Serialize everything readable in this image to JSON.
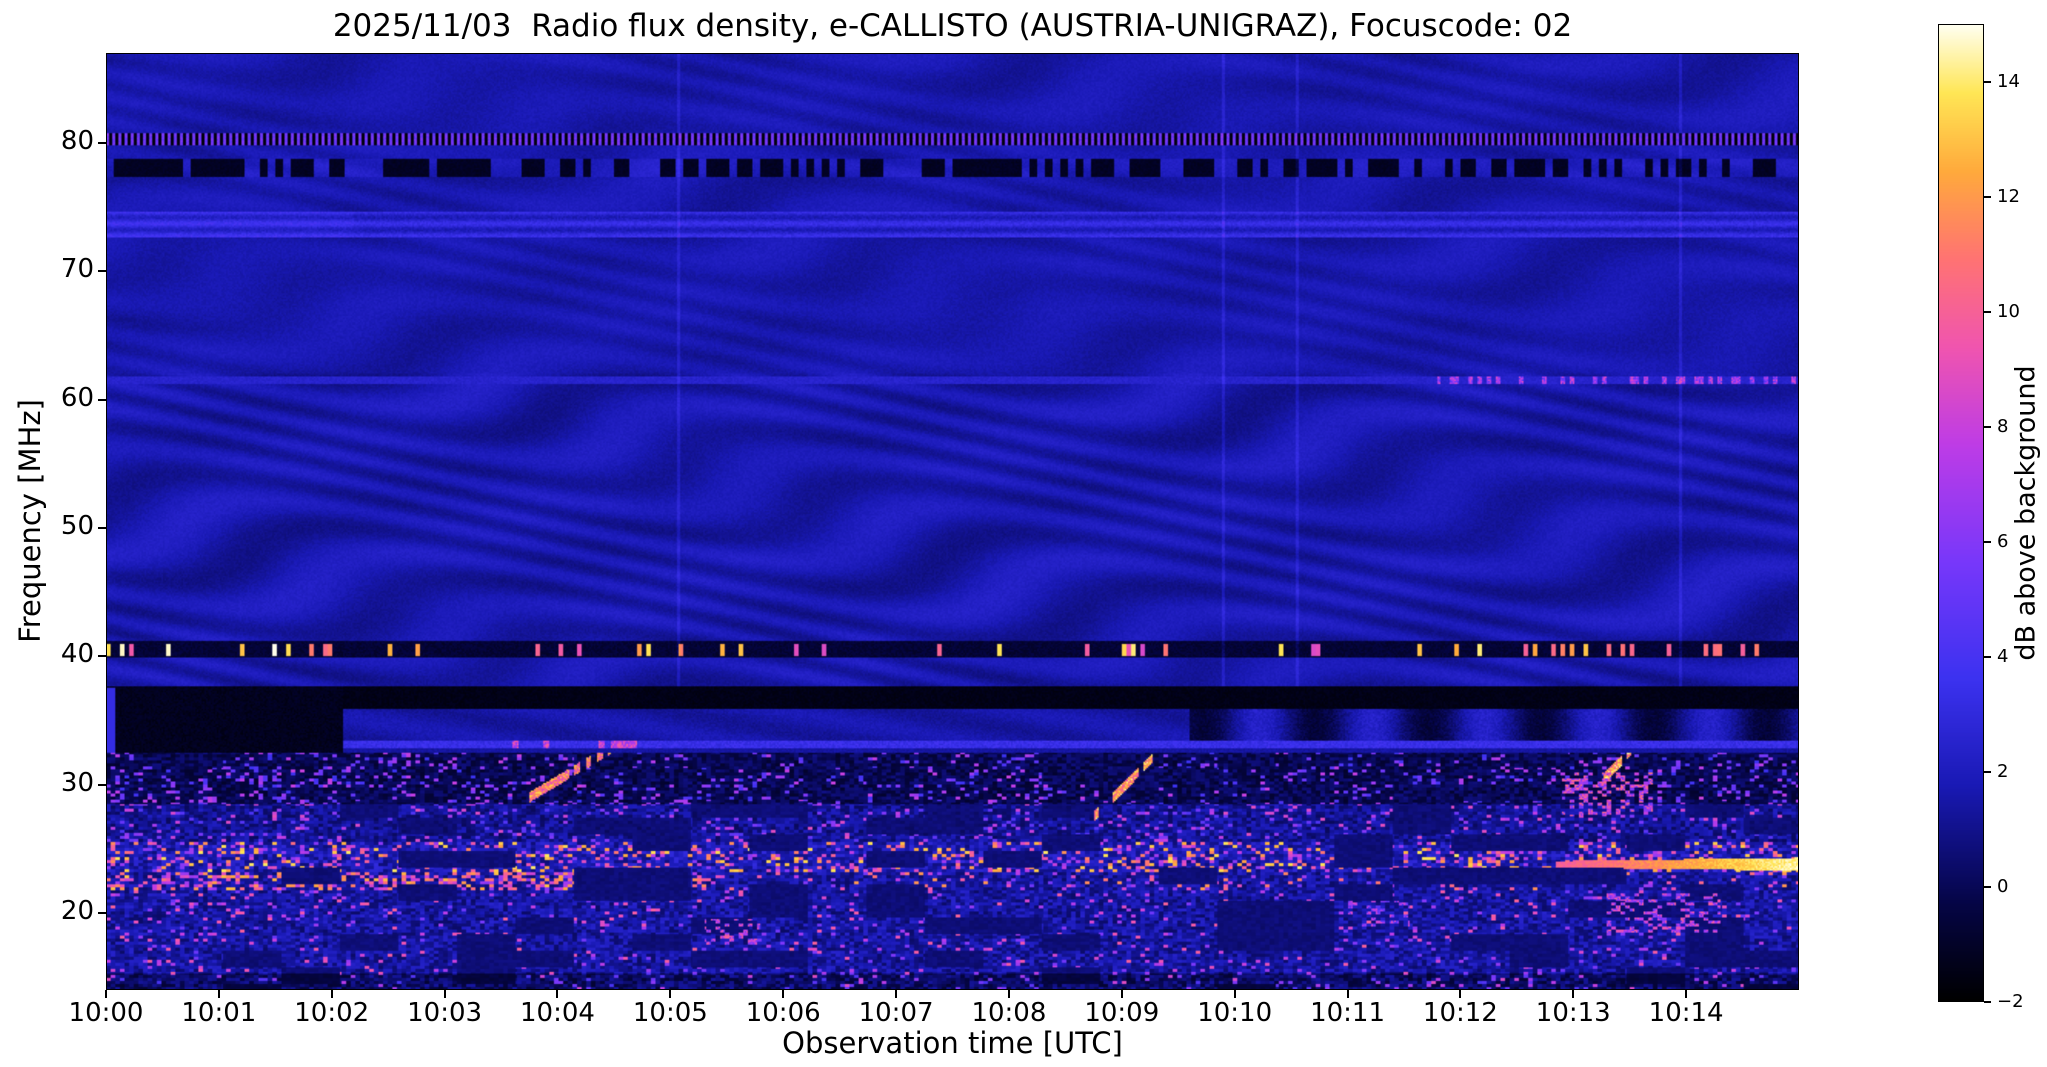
{
  "chart_data": {
    "type": "heatmap",
    "title": "2025/11/03  Radio flux density, e-CALLISTO (AUSTRIA-UNIGRAZ), Focuscode: 02",
    "xlabel": "Observation time [UTC]",
    "ylabel": "Frequency [MHz]",
    "x_ticks": [
      "10:00",
      "10:01",
      "10:02",
      "10:03",
      "10:04",
      "10:05",
      "10:06",
      "10:07",
      "10:08",
      "10:09",
      "10:10",
      "10:11",
      "10:12",
      "10:13",
      "10:14"
    ],
    "x_range_minutes": [
      0,
      15
    ],
    "y_ticks": [
      20,
      30,
      40,
      50,
      60,
      70,
      80
    ],
    "y_range_mhz": [
      14,
      87
    ],
    "grid": false,
    "colorbar": {
      "label": "dB above background",
      "tick_labels": [
        "−2",
        "0",
        "2",
        "4",
        "6",
        "8",
        "10",
        "12",
        "14"
      ],
      "tick_values": [
        -2,
        0,
        2,
        4,
        6,
        8,
        10,
        12,
        14
      ],
      "range": [
        -2,
        15
      ]
    },
    "colormap": {
      "name": "gnuplot2-like",
      "range": [
        -2,
        15
      ],
      "stops": [
        [
          0.0,
          [
            0,
            0,
            0
          ]
        ],
        [
          0.1,
          [
            5,
            5,
            70
          ]
        ],
        [
          0.22,
          [
            25,
            25,
            180
          ]
        ],
        [
          0.33,
          [
            60,
            50,
            240
          ]
        ],
        [
          0.45,
          [
            120,
            55,
            250
          ]
        ],
        [
          0.57,
          [
            190,
            60,
            230
          ]
        ],
        [
          0.67,
          [
            240,
            85,
            175
          ]
        ],
        [
          0.76,
          [
            255,
            115,
            115
          ]
        ],
        [
          0.85,
          [
            255,
            170,
            60
          ]
        ],
        [
          0.93,
          [
            255,
            230,
            85
          ]
        ],
        [
          1.0,
          [
            255,
            255,
            240
          ]
        ]
      ]
    },
    "features": {
      "description": "Blue background with curved interference fringes above 37 MHz; dotted RFI line at 80.3 MHz; dark dashed band at 78 MHz; bright blue band at 73-74.5 MHz; faint line at 61.5 MHz with pink dots after 10:12; dark band with bright white dots at 40.5 MHz; black band 36-37.6 MHz; thin light-blue line at 33 MHz from 10:02; black block 32.5-37.6 MHz before 10:02; noisy speckled RFI field below 32.5 MHz with bright yellow bursts near 24 and 22.5 MHz; drifting bursts near 10:04, 10:09 and 10:13 rising 28-33 MHz; continuous bright streak at 23.8 MHz after 10:13.",
      "bands": {
        "dotted_line": {
          "f": [
            79.85,
            80.75
          ],
          "v_on": 4.6,
          "v_off": -1.6
        },
        "dashed_dark": {
          "f": [
            77.4,
            78.8
          ],
          "v_dark": -1.4
        },
        "bright_band_73": {
          "f": [
            72.6,
            74.6
          ],
          "v": 2.6
        },
        "line_61": {
          "f_center": 61.5,
          "half_w": 0.28,
          "v": 2.5,
          "dot_m_start": 11.8,
          "dot_p": 0.35,
          "dot_v": [
            4.5,
            9
          ]
        },
        "strip_33_36": {
          "f": [
            33.4,
            35.95
          ],
          "mod_m_start": 9.6
        },
        "dotted_band_40": {
          "f": [
            39.85,
            41.15
          ],
          "v_bg": -1.1,
          "dot_p": 0.16,
          "dot_v": [
            8.5,
            15
          ]
        },
        "dark_band_37": {
          "f": [
            35.95,
            37.65
          ],
          "v": -1.7
        },
        "line_33": {
          "f_center": 33.1,
          "half_w": 0.28,
          "m_start": 2.1,
          "v": 3.4
        },
        "left_dark_block": {
          "f": [
            32.5,
            37.65
          ],
          "m_end": 2.1,
          "v": -1.6
        },
        "left_edge_strip": {
          "m_end": 0.08,
          "f": [
            32.5,
            37.5
          ],
          "v": 3.2
        }
      },
      "noise_bands": [
        {
          "f": [
            28.5,
            32.5
          ],
          "base": -0.9,
          "spread": 1.6,
          "p": 0.14,
          "hi": [
            3.5,
            8
          ]
        },
        {
          "f": [
            25.5,
            28.5
          ],
          "base": 0.1,
          "spread": 2.1,
          "p": 0.12,
          "hi": [
            4,
            9
          ]
        },
        {
          "f": [
            23.2,
            25.5
          ],
          "base": 0.6,
          "spread": 2.4,
          "p": 0.26,
          "hi": [
            6,
            14
          ]
        },
        {
          "f": [
            21.8,
            23.2
          ],
          "base": 0.3,
          "spread": 2.1,
          "p": 0.1,
          "hi": [
            5,
            12
          ],
          "left_m_end": 5.4,
          "left_p": 0.42,
          "left_hi": [
            6,
            13
          ]
        },
        {
          "f": [
            14.0,
            21.8
          ],
          "base": 0.3,
          "spread": 2.2,
          "p": 0.07,
          "hi": [
            5,
            10
          ]
        }
      ],
      "bursts": [
        {
          "m": [
            3.75,
            4.55
          ],
          "f": [
            29.0,
            33.2
          ],
          "v": 11
        },
        {
          "m": [
            8.75,
            9.4
          ],
          "f": [
            27.5,
            33.2
          ],
          "v": 12
        },
        {
          "m": [
            12.95,
            13.6
          ],
          "f": [
            27.5,
            33.5
          ],
          "v": 12
        }
      ],
      "clusters": [
        {
          "m": [
            12.9,
            13.7
          ],
          "f": [
            27.5,
            31.0
          ],
          "p": 0.3,
          "hi": [
            5,
            11
          ]
        },
        {
          "m": [
            5.3,
            5.8
          ],
          "f": [
            17.5,
            19.5
          ],
          "p": 0.3,
          "hi": [
            5,
            10
          ]
        },
        {
          "m": [
            11.0,
            11.55
          ],
          "f": [
            19.0,
            21.0
          ],
          "p": 0.25,
          "hi": [
            4,
            9
          ]
        },
        {
          "m": [
            13.3,
            14.3
          ],
          "f": [
            18.5,
            21.5
          ],
          "p": 0.28,
          "hi": [
            5,
            10
          ]
        }
      ],
      "streak_24": {
        "m_start": 12.85,
        "f_center": 23.8,
        "v": [
          9,
          15
        ]
      },
      "vlines": [
        5.07,
        9.9,
        10.55,
        13.95
      ]
    }
  }
}
